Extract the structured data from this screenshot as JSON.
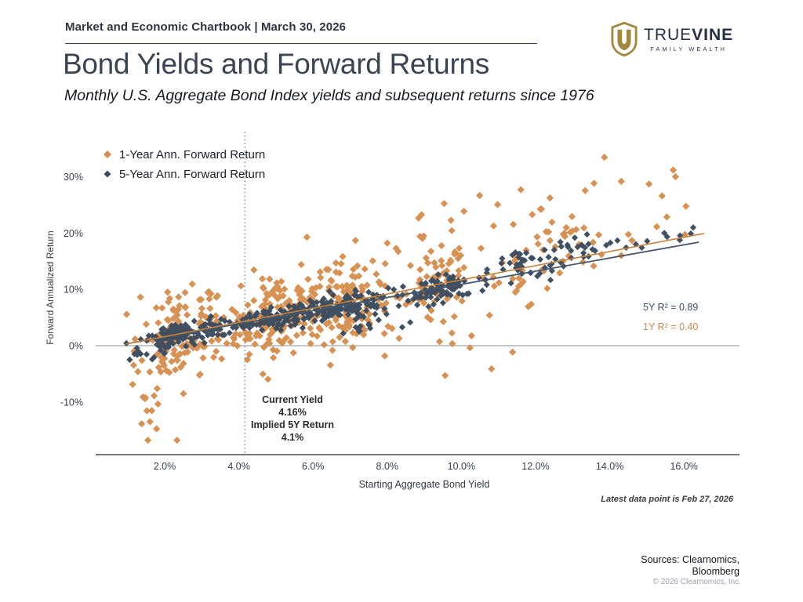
{
  "header": {
    "kicker": "Market and Economic Chartbook | March 30, 2026",
    "title": "Bond Yields and Forward Returns",
    "subtitle": "Monthly U.S. Aggregate Bond Index yields and subsequent returns since 1976"
  },
  "logo": {
    "brand_primary": "TRUE",
    "brand_secondary": "VINE",
    "tagline": "FAMILY WEALTH",
    "shield_color": "#a3873e",
    "text_color": "#252e45"
  },
  "chart_data": {
    "type": "scatter",
    "title": "Bond Yields and Forward Returns",
    "xlabel": "Starting Aggregate Bond Yield",
    "ylabel": "Forward Annualized Return",
    "x_ticks": [
      "2.0%",
      "4.0%",
      "6.0%",
      "8.0%",
      "10.0%",
      "12.0%",
      "14.0%",
      "16.0%"
    ],
    "x_tick_values": [
      2,
      4,
      6,
      8,
      10,
      12,
      14,
      16
    ],
    "y_ticks": [
      "30%",
      "20%",
      "10%",
      "0%",
      "-10%"
    ],
    "y_tick_values": [
      30,
      20,
      10,
      0,
      -10
    ],
    "xlim": [
      0.2,
      17.5
    ],
    "ylim": [
      -19.5,
      38
    ],
    "grid": "zero-line-only",
    "legend_position": "top-left",
    "series": [
      {
        "name": "1-Year Ann. Forward Return",
        "color": "#d58c4c",
        "r2": 0.4,
        "r2_label": "1Y R² = 0.40",
        "trend": {
          "slope": 1.26,
          "intercept": -0.9,
          "color": "#c8813c",
          "x_start": 0.95,
          "x_end": 16.55
        }
      },
      {
        "name": "5-Year Ann. Forward Return",
        "color": "#3a4a5e",
        "r2": 0.89,
        "r2_label": "5Y R² = 0.89",
        "trend": {
          "slope": 1.17,
          "intercept": -0.8,
          "color": "#46586d",
          "x_start": 0.95,
          "x_end": 16.4
        }
      }
    ],
    "current_yield_marker": {
      "x": 4.16,
      "label_lines": [
        "Current Yield",
        "4.16%",
        "Implied 5Y Return",
        "4.1%"
      ]
    },
    "zero_line": 0,
    "footnote": "Latest data point is Feb 27, 2026",
    "generator": {
      "seed": 20260330,
      "start_year": 1976.0,
      "months_1y": 590,
      "months_5y": 542,
      "yield_noise_sd": 0.12,
      "yield_path": [
        [
          1976,
          7.3
        ],
        [
          1977,
          7.0
        ],
        [
          1978,
          8.0
        ],
        [
          1979,
          9.3
        ],
        [
          1980.2,
          12.8
        ],
        [
          1980.45,
          10.6
        ],
        [
          1981.8,
          16.3
        ],
        [
          1982.9,
          11.3
        ],
        [
          1983.5,
          11.8
        ],
        [
          1984.5,
          13.6
        ],
        [
          1986.2,
          8.8
        ],
        [
          1987.8,
          9.6
        ],
        [
          1989.2,
          9.9
        ],
        [
          1990.8,
          9.2
        ],
        [
          1993.8,
          5.4
        ],
        [
          1994.9,
          7.9
        ],
        [
          1996.1,
          6.3
        ],
        [
          1997.3,
          7.0
        ],
        [
          1998.8,
          5.7
        ],
        [
          2000.1,
          7.3
        ],
        [
          2002,
          5.3
        ],
        [
          2003.5,
          3.9
        ],
        [
          2004.5,
          4.8
        ],
        [
          2006.6,
          5.7
        ],
        [
          2007.5,
          5.3
        ],
        [
          2008.9,
          4.6
        ],
        [
          2010,
          3.6
        ],
        [
          2010.8,
          2.9
        ],
        [
          2011.2,
          3.4
        ],
        [
          2012.6,
          1.75
        ],
        [
          2013.9,
          2.5
        ],
        [
          2014.9,
          2.3
        ],
        [
          2016.6,
          1.9
        ],
        [
          2018.9,
          3.5
        ],
        [
          2019.7,
          2.3
        ],
        [
          2020.6,
          1.1
        ],
        [
          2021.1,
          1.35
        ],
        [
          2021.9,
          1.8
        ],
        [
          2022.85,
          4.75
        ],
        [
          2023.3,
          4.4
        ],
        [
          2023.85,
          5.2
        ],
        [
          2024.3,
          4.7
        ],
        [
          2024.9,
          4.6
        ],
        [
          2025.5,
          4.5
        ],
        [
          2026.1,
          4.16
        ]
      ],
      "noise_sd_1y": 3.6,
      "noise_sd_5y": 1.05,
      "clip_y_1y": [
        -16.8,
        36
      ],
      "clip_y_5y": [
        -2.5,
        21
      ],
      "anomalies_1y": [
        {
          "from": 1979.0,
          "to": 1980.0,
          "offset": -9
        },
        {
          "from": 1980.0,
          "to": 1980.45,
          "offset": 4
        },
        {
          "from": 1981.5,
          "to": 1982.95,
          "offset": 10
        },
        {
          "from": 1983.0,
          "to": 1985.0,
          "offset": 3
        },
        {
          "from": 1985.5,
          "to": 1986.8,
          "offset": 7
        },
        {
          "from": 1994.0,
          "to": 1995.0,
          "offset": -5
        },
        {
          "from": 1999.0,
          "to": 2000.1,
          "offset": -3
        },
        {
          "from": 2021.0,
          "to": 2022.3,
          "offset": -11
        },
        {
          "from": 2022.3,
          "to": 2023.2,
          "offset": -3
        }
      ],
      "anomalies_5y": [
        {
          "from": 1976.0,
          "to": 1978.5,
          "offset": -2.6
        },
        {
          "from": 1981.0,
          "to": 1985.5,
          "offset": 2.3
        },
        {
          "from": 2019.4,
          "to": 2021.2,
          "offset": -1.3
        }
      ]
    }
  },
  "footer": {
    "sources_line1": "Sources: Clearnomics,",
    "sources_line2": "Bloomberg",
    "copyright": "© 2026 Clearnomics, Inc."
  }
}
